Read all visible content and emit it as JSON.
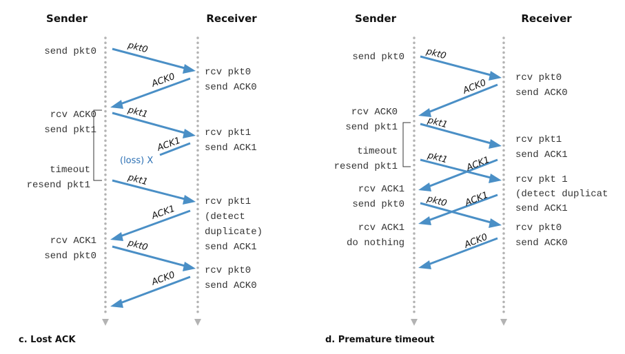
{
  "panels": [
    {
      "id": "c",
      "caption": "c. Lost ACK",
      "sender_header": "Sender",
      "receiver_header": "Receiver",
      "sender_events": [
        "send pkt0",
        "rcv ACK0",
        "send pkt1",
        "timeout",
        "resend pkt1",
        "rcv ACK1",
        "send pkt0"
      ],
      "receiver_events": [
        "rcv pkt0",
        "send ACK0",
        "rcv pkt1",
        "send ACK1",
        "rcv pkt1",
        "(detect",
        "duplicate)",
        "send ACK1",
        "rcv pkt0",
        "send ACK0"
      ],
      "messages": [
        "pkt0",
        "ACK0",
        "pkt1",
        "ACK1",
        "pkt1",
        "ACK1",
        "pkt0",
        "ACK0"
      ],
      "loss_label": "(loss) X"
    },
    {
      "id": "d",
      "caption": "d. Premature timeout",
      "sender_header": "Sender",
      "receiver_header": "Receiver",
      "sender_events": [
        "send pkt0",
        "rcv ACK0",
        "send pkt1",
        "timeout",
        "resend pkt1",
        "rcv ACK1",
        "send pkt0",
        "rcv ACK1",
        "do nothing"
      ],
      "receiver_events": [
        "rcv pkt0",
        "send ACK0",
        "rcv pkt1",
        "send ACK1",
        "rcv pkt 1",
        "(detect duplicat",
        "send ACK1",
        "rcv pkt0",
        "send ACK0"
      ],
      "messages": [
        "pkt0",
        "ACK0",
        "pkt1",
        "pkt1",
        "ACK1",
        "ACK1",
        "pkt0",
        "ACK0"
      ]
    }
  ]
}
